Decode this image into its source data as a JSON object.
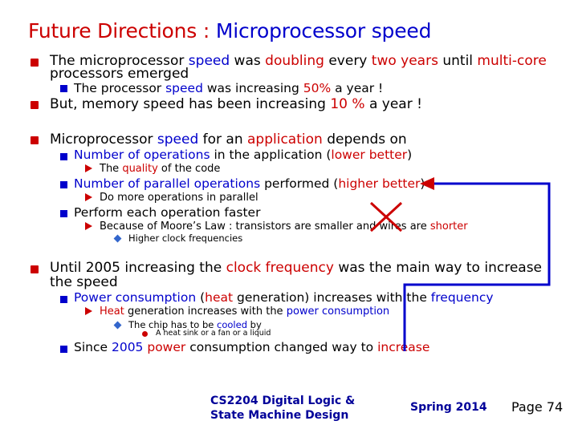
{
  "title": {
    "prefix": "Future Directions : ",
    "main": "Microprocessor speed"
  },
  "items": {
    "i1": {
      "a": "The microprocessor ",
      "b": "speed",
      "c": " was ",
      "d": "doubling",
      "e": " every ",
      "f": "two years",
      "g": " until ",
      "h": "multi-core",
      "line2": "processors emerged"
    },
    "i1_1": {
      "a": "The processor ",
      "b": "speed",
      "c": " was increasing ",
      "d": "50%",
      "e": " a year !"
    },
    "i2": {
      "a": "But, memory speed has been increasing ",
      "b": "10 %",
      "c": " a year !"
    },
    "i3": {
      "a": "Microprocessor ",
      "b": "speed",
      "c": " for an ",
      "d": "application",
      "e": " depends on"
    },
    "i3_1": {
      "a": "Number of operations",
      "b": " in the application (",
      "c": "lower better",
      "d": ")"
    },
    "i3_1_1": {
      "a": "The ",
      "b": "quality",
      "c": " of the code"
    },
    "i3_2": {
      "a": "Number of parallel operations",
      "b": " performed (",
      "c": "higher better",
      "d": ")"
    },
    "i3_2_1": {
      "a": "Do more operations in parallel"
    },
    "i3_3": {
      "a": "Perform each operation faster"
    },
    "i3_3_1": {
      "a": "Because of Moore’s Law : transistors are smaller and wires are ",
      "b": "shorter"
    },
    "i3_3_1_1": {
      "a": "Higher clock frequencies"
    },
    "i4": {
      "a": "Until 2005 increasing the ",
      "b": "clock frequency",
      "c": " was the main way to increase",
      "line2": "the speed"
    },
    "i4_1": {
      "a": "Power consumption",
      "b": " (",
      "c": "heat",
      "d": " generation) increases with the ",
      "e": "frequency"
    },
    "i4_1_1": {
      "a": "Heat",
      "b": " generation increases with the ",
      "c": "power consumption"
    },
    "i4_1_1_1": {
      "a": "The chip has to be ",
      "b": "cooled",
      "c": " by"
    },
    "i4_1_1_1_1": {
      "a": "A heat sink or a fan or a liquid"
    },
    "i4_2": {
      "a": "Since ",
      "b": "2005",
      "c": " ",
      "d": "power",
      "e": " consumption changed way to ",
      "f": "increase"
    }
  },
  "footer": {
    "course_line1": "CS2204 Digital Logic &",
    "course_line2": "State Machine Design",
    "term": "Spring 2014",
    "page": "Page 74"
  },
  "colors": {
    "title_red": "#cc0000",
    "accent_blue": "#0000cc",
    "footer_navy": "#000099",
    "connector_blue": "#0000cc",
    "cross_red": "#cc0000"
  }
}
